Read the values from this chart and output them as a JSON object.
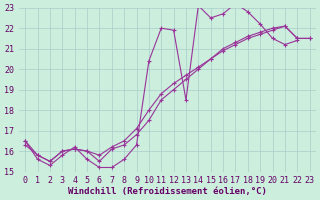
{
  "xlabel": "Windchill (Refroidissement éolien,°C)",
  "bg_color": "#cceedd",
  "grid_color": "#aacccc",
  "line_color": "#993399",
  "xlim": [
    -0.5,
    23.5
  ],
  "ylim": [
    15,
    23
  ],
  "yticks": [
    15,
    16,
    17,
    18,
    19,
    20,
    21,
    22,
    23
  ],
  "xticks": [
    0,
    1,
    2,
    3,
    4,
    5,
    6,
    7,
    8,
    9,
    10,
    11,
    12,
    13,
    14,
    15,
    16,
    17,
    18,
    19,
    20,
    21,
    22,
    23
  ],
  "series1_x": [
    0,
    1,
    2,
    3,
    4,
    5,
    6,
    7,
    8,
    9,
    10,
    11,
    12,
    13,
    14,
    15,
    16,
    17,
    18,
    19,
    20,
    21,
    22
  ],
  "series1_y": [
    16.5,
    15.6,
    15.3,
    15.8,
    16.2,
    15.6,
    15.2,
    15.2,
    15.6,
    16.3,
    20.4,
    22.0,
    21.9,
    18.5,
    23.1,
    22.5,
    22.7,
    23.2,
    22.8,
    22.2,
    21.5,
    21.2,
    21.4
  ],
  "series2_x": [
    0,
    1,
    2,
    3,
    4,
    5,
    6,
    7,
    8,
    9,
    10,
    11,
    12,
    13,
    14,
    15,
    16,
    17,
    18,
    19,
    20,
    21,
    22,
    23
  ],
  "series2_y": [
    16.5,
    15.8,
    15.5,
    16.0,
    16.1,
    16.0,
    15.5,
    16.1,
    16.3,
    16.8,
    17.5,
    18.5,
    19.0,
    19.5,
    20.0,
    20.5,
    21.0,
    21.3,
    21.6,
    21.8,
    22.0,
    22.1,
    21.5,
    21.5
  ],
  "series3_x": [
    0,
    1,
    2,
    3,
    4,
    5,
    6,
    7,
    8,
    9,
    10,
    11,
    12,
    13,
    14,
    15,
    16,
    17,
    18,
    19,
    20,
    21,
    22,
    23
  ],
  "series3_y": [
    16.3,
    15.8,
    15.5,
    16.0,
    16.1,
    16.0,
    15.8,
    16.2,
    16.5,
    17.1,
    18.0,
    18.8,
    19.3,
    19.7,
    20.1,
    20.5,
    20.9,
    21.2,
    21.5,
    21.7,
    21.9,
    22.1,
    21.5,
    21.5
  ],
  "xlabel_fontsize": 6.5,
  "tick_fontsize": 6.0
}
